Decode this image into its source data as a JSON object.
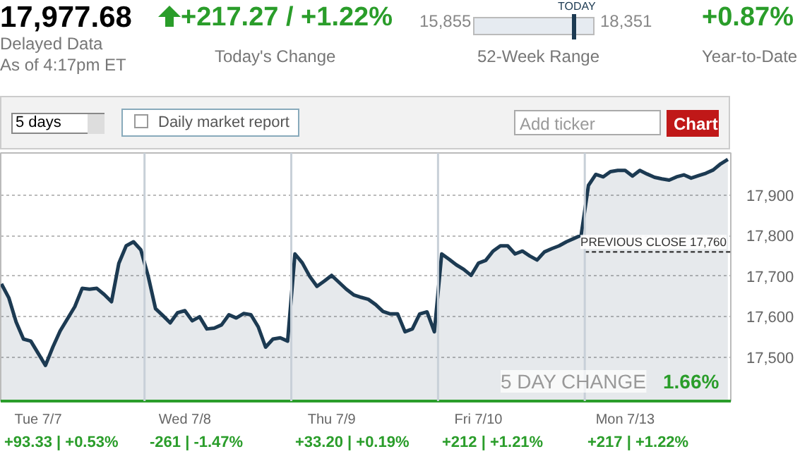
{
  "chart_data": {
    "type": "area",
    "annotations": [
      "17,977.68",
      "Delayed Data",
      "As of 4:17pm ET",
      "+217.27 / +1.22%",
      "Today's Change",
      "15,855",
      "TODAY",
      "18,351",
      "52-Week Range",
      "+0.87%",
      "Year-to-Date",
      "5 days",
      "Daily market report",
      "Add ticker",
      "Chart",
      "5 DAY CHANGE 1.66%",
      "+93.33 | +0.53%",
      "-261 | -1.47%",
      "+33.20 | +0.19%",
      "+212 | +1.21%",
      "+217 | +1.22%"
    ],
    "categories": [
      null,
      null,
      null,
      null,
      null,
      "Tue 7/7",
      null,
      null,
      null,
      null,
      null,
      null,
      null,
      null,
      null,
      null,
      null,
      null,
      null,
      null,
      null,
      null,
      null,
      null,
      null,
      "Wed 7/8",
      null,
      null,
      null,
      null,
      null,
      null,
      null,
      null,
      null,
      null,
      null,
      null,
      null,
      null,
      null,
      null,
      null,
      null,
      null,
      "Thu 7/9",
      null,
      null,
      null,
      null,
      null,
      null,
      null,
      null,
      null,
      null,
      null,
      null,
      null,
      null,
      null,
      null,
      null,
      null,
      null,
      "Fri 7/10",
      null,
      null,
      null,
      null,
      null,
      null,
      null,
      null,
      null,
      null,
      null,
      null,
      null,
      null,
      null,
      null,
      null,
      null,
      null,
      "Mon 7/13",
      null,
      null,
      null,
      null,
      null,
      null,
      null,
      null,
      null,
      null,
      null,
      null,
      null,
      null
    ],
    "series": [
      {
        "color": "#1c3a52",
        "values": [
          17681,
          17647,
          17587,
          17545,
          17540,
          17510,
          17480,
          17525,
          17565,
          17595,
          17625,
          17670,
          17668,
          17670,
          17655,
          17637,
          17732,
          17775,
          17785,
          17765,
          17700,
          17620,
          17603,
          17585,
          17610,
          17615,
          17590,
          17600,
          17570,
          17572,
          17580,
          17605,
          17597,
          17608,
          17605,
          17575,
          17525,
          17545,
          17548,
          17540,
          17755,
          17733,
          17700,
          17675,
          17688,
          17702,
          17685,
          17668,
          17654,
          17648,
          17643,
          17630,
          17613,
          17607,
          17607,
          17563,
          17570,
          17607,
          17612,
          17563,
          17755,
          17742,
          17728,
          17717,
          17702,
          17732,
          17739,
          17762,
          17775,
          17775,
          17755,
          17762,
          17750,
          17740,
          17760,
          17768,
          17775,
          17785,
          17793,
          17801,
          17924,
          17951,
          17945,
          17958,
          17961,
          17961,
          17947,
          17961,
          17952,
          17944,
          17940,
          17937,
          17945,
          17950,
          17942,
          17948,
          17954,
          17962,
          17977,
          17988
        ]
      }
    ],
    "ylim": [
      17392,
      18004
    ],
    "yticks": [
      {
        "value": 17500,
        "label": "17,500"
      },
      {
        "value": 17600,
        "label": "17,600"
      },
      {
        "value": 17700,
        "label": "17,700"
      },
      {
        "value": 17800,
        "label": "17,800"
      },
      {
        "value": 17900,
        "label": "17,900"
      }
    ],
    "grid": "y",
    "ref_lines": [
      {
        "axis": "y",
        "value": 17760,
        "label": "PREVIOUS CLOSE 17,760",
        "color": "#333333",
        "line_style": "dashed"
      }
    ]
  }
}
